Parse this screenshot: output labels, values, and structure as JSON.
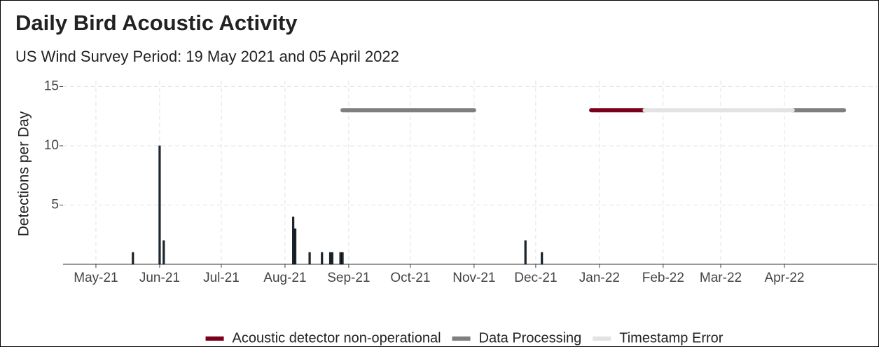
{
  "chart_data": {
    "type": "bar",
    "title": "Daily Bird Acoustic Activity",
    "subtitle": "US Wind Survey Period: 19 May 2021 and 05 April 2022",
    "ylabel": "Detections per Day",
    "x": [
      "2021-05-19",
      "2021-06-01",
      "2021-06-03",
      "2021-08-05",
      "2021-08-06",
      "2021-08-13",
      "2021-08-19",
      "2021-08-23",
      "2021-08-24",
      "2021-08-28",
      "2021-08-29",
      "2021-11-26",
      "2021-12-04"
    ],
    "values": [
      1,
      10,
      2,
      4,
      3,
      1,
      1,
      1,
      1,
      1,
      1,
      2,
      1
    ],
    "color": "#1c2a36",
    "status": [
      {
        "name": "Acoustic detector non-operational",
        "color": "#7a0019",
        "y": 13,
        "ranges": [
          [
            "2021-12-28",
            "2022-01-23"
          ]
        ]
      },
      {
        "name": "Data Processing",
        "color": "#7f7f7f",
        "y": 13,
        "ranges": [
          [
            "2021-08-29",
            "2021-11-01"
          ],
          [
            "2022-04-05",
            "2022-04-30"
          ]
        ]
      },
      {
        "name": "Timestamp Error",
        "color": "#e3e3e3",
        "y": 13,
        "ranges": [
          [
            "2022-01-23",
            "2022-04-05"
          ]
        ]
      }
    ],
    "xlim": [
      "2021-04-15",
      "2022-05-16"
    ],
    "xticks": [
      {
        "value": "2021-05-01",
        "label": "May-21"
      },
      {
        "value": "2021-06-01",
        "label": "Jun-21"
      },
      {
        "value": "2021-07-01",
        "label": "Jul-21"
      },
      {
        "value": "2021-08-01",
        "label": "Aug-21"
      },
      {
        "value": "2021-09-01",
        "label": "Sep-21"
      },
      {
        "value": "2021-10-01",
        "label": "Oct-21"
      },
      {
        "value": "2021-11-01",
        "label": "Nov-21"
      },
      {
        "value": "2021-12-01",
        "label": "Dec-21"
      },
      {
        "value": "2022-01-01",
        "label": "Jan-22"
      },
      {
        "value": "2022-02-01",
        "label": "Feb-22"
      },
      {
        "value": "2022-03-01",
        "label": "Mar-22"
      },
      {
        "value": "2022-04-01",
        "label": "Apr-22"
      }
    ],
    "ylim": [
      0,
      15.5
    ],
    "yticks": [
      5,
      10,
      15
    ],
    "grid": true,
    "legend": "bottom"
  }
}
